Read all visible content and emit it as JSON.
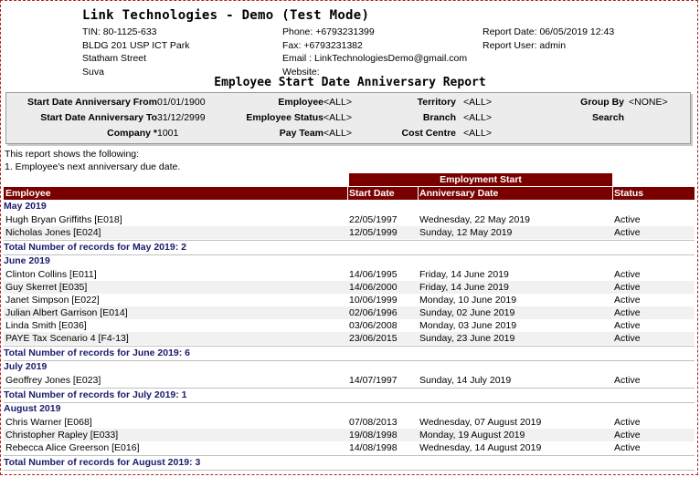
{
  "header": {
    "company": "Link Technologies - Demo (Test Mode)",
    "tin": "TIN: 80-1125-633",
    "addr1": "BLDG 201 USP ICT Park",
    "addr2": "Statham Street",
    "addr3": "Suva",
    "phone": "Phone: +6793231399",
    "fax": "Fax: +6793231382",
    "email": "Email : LinkTechnologiesDemo@gmail.com",
    "website": "Website:",
    "report_date": "Report Date: 06/05/2019 12:43",
    "report_user": "Report User: admin"
  },
  "title": "Employee Start Date Anniversary Report",
  "params": {
    "start_from_label": "Start Date Anniversary From",
    "start_from_value": "01/01/1900",
    "start_to_label": "Start Date Anniversary To",
    "start_to_value": "31/12/2999",
    "company_label": "Company *",
    "company_value": "1001",
    "employee_label": "Employee",
    "employee_value": "<ALL>",
    "emp_status_label": "Employee Status",
    "emp_status_value": "<ALL>",
    "pay_team_label": "Pay Team",
    "pay_team_value": "<ALL>",
    "territory_label": "Territory",
    "territory_value": "<ALL>",
    "branch_label": "Branch",
    "branch_value": "<ALL>",
    "cost_centre_label": "Cost Centre",
    "cost_centre_value": "<ALL>",
    "group_by_label": "Group By",
    "group_by_value": "<NONE>",
    "search_label": "Search"
  },
  "intro": {
    "line1": "This report shows the following:",
    "line2": "1. Employee's next anniversary due date."
  },
  "table": {
    "group_header": "Employment Start",
    "columns": [
      "Employee",
      "Start Date",
      "Anniversary Date",
      "Status"
    ]
  },
  "groups": [
    {
      "name": "May 2019",
      "total": "Total Number of records for May 2019: 2",
      "rows": [
        [
          "Hugh Bryan Griffiths [E018]",
          "22/05/1997",
          "Wednesday, 22 May 2019",
          "Active"
        ],
        [
          "Nicholas Jones [E024]",
          "12/05/1999",
          "Sunday, 12 May 2019",
          "Active"
        ]
      ]
    },
    {
      "name": "June 2019",
      "total": "Total Number of records for June 2019: 6",
      "rows": [
        [
          "Clinton Collins [E011]",
          "14/06/1995",
          "Friday, 14 June 2019",
          "Active"
        ],
        [
          "Guy Skerret [E035]",
          "14/06/2000",
          "Friday, 14 June 2019",
          "Active"
        ],
        [
          "Janet Simpson [E022]",
          "10/06/1999",
          "Monday, 10 June 2019",
          "Active"
        ],
        [
          "Julian Albert Garrison [E014]",
          "02/06/1996",
          "Sunday, 02 June 2019",
          "Active"
        ],
        [
          "Linda Smith [E036]",
          "03/06/2008",
          "Monday, 03 June 2019",
          "Active"
        ],
        [
          "PAYE Tax Scenario 4 [F4-13]",
          "23/06/2015",
          "Sunday, 23 June 2019",
          "Active"
        ]
      ]
    },
    {
      "name": "July 2019",
      "total": "Total Number of records for July 2019: 1",
      "rows": [
        [
          "Geoffrey Jones [E023]",
          "14/07/1997",
          "Sunday, 14 July 2019",
          "Active"
        ]
      ]
    },
    {
      "name": "August 2019",
      "total": "Total Number of records for August 2019: 3",
      "rows": [
        [
          "Chris Warner [E068]",
          "07/08/2013",
          "Wednesday, 07 August 2019",
          "Active"
        ],
        [
          "Christopher Rapley [E033]",
          "19/08/1998",
          "Monday, 19 August 2019",
          "Active"
        ],
        [
          "Rebecca Alice Greerson [E016]",
          "14/08/1998",
          "Wednesday, 14 August 2019",
          "Active"
        ]
      ]
    }
  ]
}
